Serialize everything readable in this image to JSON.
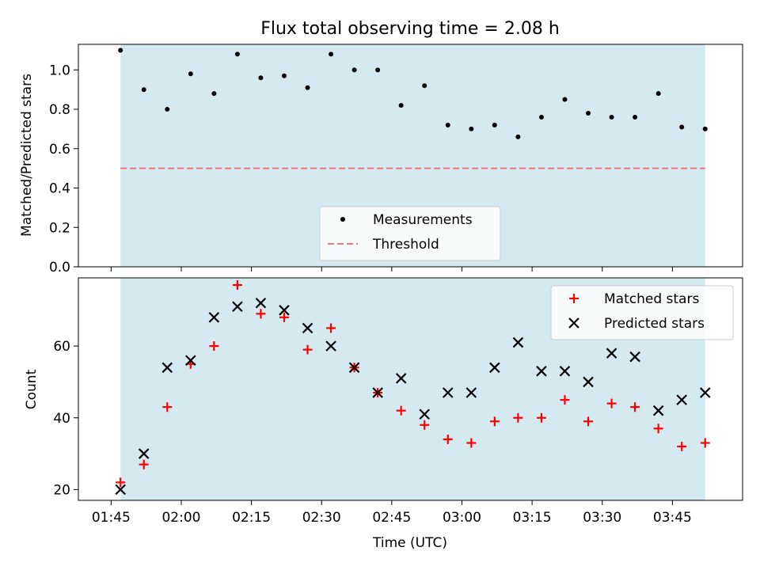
{
  "title": "Flux total observing time = 2.08 h",
  "colors": {
    "shade": "#d4eaf0",
    "threshold": "#f07575",
    "matched": "#ff0000",
    "predicted": "#000000",
    "measurement": "#000000"
  },
  "chart_data": [
    {
      "type": "scatter",
      "panel": "top",
      "ylabel": "Matched/Predicted stars",
      "xlabel": "",
      "ylim": [
        0,
        1.13
      ],
      "yticks": [
        0.0,
        0.2,
        0.4,
        0.6,
        0.8,
        1.0
      ],
      "ytick_labels": [
        "0.0",
        "0.2",
        "0.4",
        "0.6",
        "0.8",
        "1.0"
      ],
      "shaded_span": [
        "01:47",
        "03:52"
      ],
      "legend": {
        "placement": "lower center",
        "entries": [
          "Measurements",
          "Threshold"
        ]
      },
      "x": [
        "01:47",
        "01:52",
        "01:57",
        "02:02",
        "02:07",
        "02:12",
        "02:17",
        "02:22",
        "02:27",
        "02:32",
        "02:37",
        "02:42",
        "02:47",
        "02:52",
        "02:57",
        "03:02",
        "03:07",
        "03:12",
        "03:17",
        "03:22",
        "03:27",
        "03:32",
        "03:37",
        "03:42",
        "03:47",
        "03:52"
      ],
      "series": [
        {
          "name": "Measurements",
          "kind": "points",
          "values": [
            1.1,
            0.9,
            0.8,
            0.98,
            0.88,
            1.08,
            0.96,
            0.97,
            0.91,
            1.08,
            1.0,
            1.0,
            0.82,
            0.92,
            0.72,
            0.7,
            0.72,
            0.66,
            0.76,
            0.85,
            0.78,
            0.76,
            0.76,
            0.88,
            0.71,
            0.7
          ]
        },
        {
          "name": "Threshold",
          "kind": "hline",
          "value": 0.5,
          "from": "01:47",
          "to": "03:52"
        }
      ]
    },
    {
      "type": "scatter",
      "panel": "bottom",
      "ylabel": "Count",
      "xlabel": "Time (UTC)",
      "ylim": [
        17,
        79
      ],
      "yticks": [
        20,
        40,
        60
      ],
      "ytick_labels": [
        "20",
        "40",
        "60"
      ],
      "xticks": [
        "01:45",
        "02:00",
        "02:15",
        "02:30",
        "02:45",
        "03:00",
        "03:15",
        "03:30",
        "03:45"
      ],
      "shaded_span": [
        "01:47",
        "03:52"
      ],
      "legend": {
        "placement": "upper right",
        "entries": [
          "Matched stars",
          "Predicted stars"
        ]
      },
      "x": [
        "01:47",
        "01:52",
        "01:57",
        "02:02",
        "02:07",
        "02:12",
        "02:17",
        "02:22",
        "02:27",
        "02:32",
        "02:37",
        "02:42",
        "02:47",
        "02:52",
        "02:57",
        "03:02",
        "03:07",
        "03:12",
        "03:17",
        "03:22",
        "03:27",
        "03:32",
        "03:37",
        "03:42",
        "03:47",
        "03:52"
      ],
      "series": [
        {
          "name": "Matched stars",
          "marker": "plus",
          "values": [
            22,
            27,
            43,
            55,
            60,
            77,
            69,
            68,
            59,
            65,
            54,
            47,
            42,
            38,
            34,
            33,
            39,
            40,
            40,
            45,
            39,
            44,
            43,
            37,
            32,
            33
          ]
        },
        {
          "name": "Predicted stars",
          "marker": "x",
          "values": [
            20,
            30,
            54,
            56,
            68,
            71,
            72,
            70,
            65,
            60,
            54,
            47,
            51,
            41,
            47,
            47,
            54,
            61,
            53,
            53,
            50,
            58,
            57,
            42,
            45,
            47
          ]
        }
      ]
    }
  ]
}
